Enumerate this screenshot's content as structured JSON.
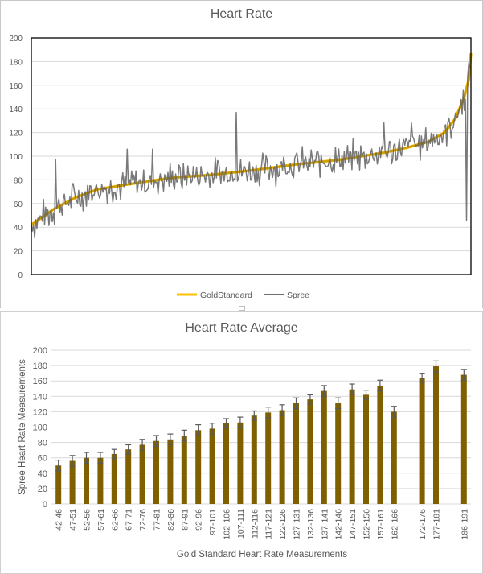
{
  "colors": {
    "gold": "#FFC000",
    "spree": "#6E6E6E",
    "bar": "#7F6000",
    "errorbar": "#595959",
    "grid": "#D9D9D9",
    "text": "#595959"
  },
  "chart_data": [
    {
      "type": "line",
      "title": "Heart Rate",
      "xlabel": "",
      "ylabel": "",
      "ylim": [
        0,
        200
      ],
      "yticks": [
        "0",
        "20",
        "40",
        "60",
        "80",
        "100",
        "120",
        "140",
        "160",
        "180",
        "200"
      ],
      "grid": true,
      "legend": "bottom",
      "n_points": 400,
      "series": [
        {
          "name": "GoldStandard",
          "color": "#FFC000",
          "keypoints": [
            [
              0,
              42
            ],
            [
              20,
              55
            ],
            [
              40,
              65
            ],
            [
              60,
              72
            ],
            [
              80,
              75
            ],
            [
              100,
              78
            ],
            [
              130,
              82
            ],
            [
              160,
              84
            ],
            [
              200,
              88
            ],
            [
              240,
              93
            ],
            [
              280,
              97
            ],
            [
              320,
              103
            ],
            [
              340,
              107
            ],
            [
              360,
              112
            ],
            [
              375,
              120
            ],
            [
              385,
              132
            ],
            [
              393,
              150
            ],
            [
              397,
              165
            ],
            [
              399,
              187
            ]
          ]
        },
        {
          "name": "Spree",
          "color": "#6E6E6E",
          "noise_amplitude": 12,
          "spikes": [
            [
              22,
              97
            ],
            [
              87,
              106
            ],
            [
              110,
              106
            ],
            [
              186,
              137
            ],
            [
              320,
              128
            ],
            [
              345,
              128
            ],
            [
              395,
              46
            ]
          ]
        }
      ]
    },
    {
      "type": "bar",
      "title": "Heart Rate Average",
      "xlabel": "Gold Standard Heart Rate Measurements",
      "ylabel": "Spree Heart Rate Measurements",
      "ylim": [
        0,
        200
      ],
      "yticks": [
        "0",
        "20",
        "40",
        "60",
        "80",
        "100",
        "120",
        "140",
        "160",
        "180",
        "200"
      ],
      "grid": true,
      "categories": [
        "42-46",
        "47-51",
        "52-56",
        "57-61",
        "62-66",
        "67-71",
        "72-76",
        "77-81",
        "82-86",
        "87-91",
        "92-96",
        "97-101",
        "102-106",
        "107-111",
        "112-116",
        "117-121",
        "122-126",
        "127-131",
        "132-136",
        "137-141",
        "142-146",
        "147-151",
        "152-156",
        "157-161",
        "162-166",
        "",
        "172-176",
        "177-181",
        "",
        "186-191"
      ],
      "values": [
        50,
        56,
        60,
        60,
        65,
        71,
        77,
        82,
        84,
        89,
        96,
        98,
        105,
        106,
        115,
        119,
        122,
        131,
        136,
        147,
        131,
        149,
        142,
        154,
        120,
        null,
        164,
        179,
        null,
        168
      ],
      "errors": [
        7,
        7,
        7,
        7,
        6,
        6,
        7,
        7,
        7,
        7,
        7,
        7,
        6,
        7,
        6,
        7,
        7,
        7,
        6,
        7,
        7,
        7,
        6,
        7,
        7,
        null,
        6,
        7,
        null,
        7
      ]
    }
  ]
}
